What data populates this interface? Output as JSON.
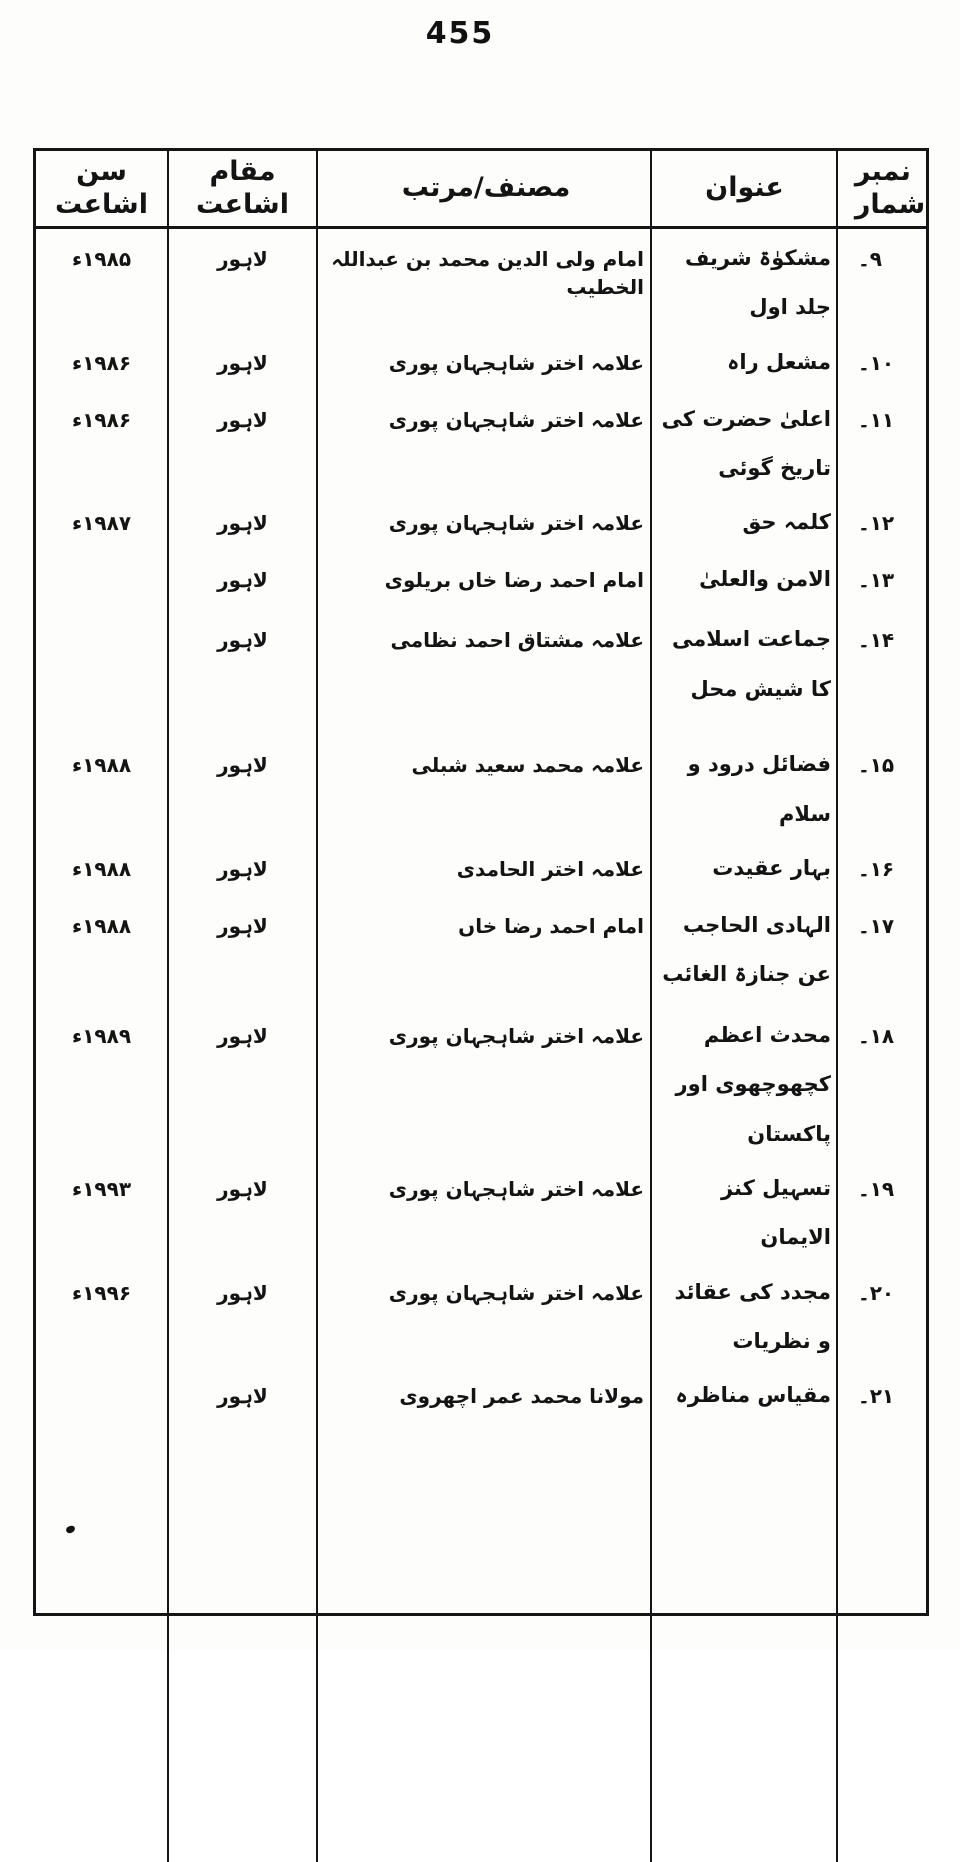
{
  "page": {
    "number": "455"
  },
  "table": {
    "headers": {
      "serial": "نمبر شمار",
      "title": "عنوان",
      "author": "مصنف/مرتب",
      "place": "مقام اشاعت",
      "year": "سن اشاعت"
    },
    "rows": [
      {
        "serial": "۹۔",
        "title": "مشکوٰۃ شریف جلد اول",
        "author": "امام ولی الدین محمد بن عبداللہ الخطیب",
        "place": "لاہور",
        "year": "۱۹۸۵ء"
      },
      {
        "serial": "۱۰۔",
        "title": "مشعل راہ",
        "author": "علامہ اختر شاہجہان پوری",
        "place": "لاہور",
        "year": "۱۹۸۶ء"
      },
      {
        "serial": "۱۱۔",
        "title": "اعلیٰ حضرت کی تاریخ گوئی",
        "author": "علامہ اختر شاہجہان پوری",
        "place": "لاہور",
        "year": "۱۹۸۶ء"
      },
      {
        "serial": "۱۲۔",
        "title": "کلمہ حق",
        "author": "علامہ اختر شاہجہان پوری",
        "place": "لاہور",
        "year": "۱۹۸۷ء"
      },
      {
        "serial": "۱۳۔",
        "title": "الامن والعلیٰ",
        "author": "امام احمد رضا خاں بریلوی",
        "place": "لاہور",
        "year": ""
      },
      {
        "serial": "۱۴۔",
        "title": "جماعت اسلامی کا شیش محل",
        "author": "علامہ مشتاق احمد نظامی",
        "place": "لاہور",
        "year": ""
      },
      {
        "serial": "۱۵۔",
        "title": "فضائل درود و سلام",
        "author": "علامہ محمد سعید شبلی",
        "place": "لاہور",
        "year": "۱۹۸۸ء"
      },
      {
        "serial": "۱۶۔",
        "title": "بہار عقیدت",
        "author": "علامہ اختر الحامدی",
        "place": "لاہور",
        "year": "۱۹۸۸ء"
      },
      {
        "serial": "۱۷۔",
        "title": "الہادی الحاجب عن جنازۃ الغائب",
        "author": "امام احمد رضا خاں",
        "place": "لاہور",
        "year": "۱۹۸۸ء"
      },
      {
        "serial": "۱۸۔",
        "title": "محدث اعظم کچھوچھوی اور پاکستان",
        "author": "علامہ اختر شاہجہان پوری",
        "place": "لاہور",
        "year": "۱۹۸۹ء"
      },
      {
        "serial": "۱۹۔",
        "title": "تسہیل کنز الایمان",
        "author": "علامہ اختر شاہجہان پوری",
        "place": "لاہور",
        "year": "۱۹۹۳ء"
      },
      {
        "serial": "۲۰۔",
        "title": "مجدد کی عقائد و نظریات",
        "author": "علامہ اختر شاہجہان پوری",
        "place": "لاہور",
        "year": "۱۹۹۶ء"
      },
      {
        "serial": "۲۱۔",
        "title": "مقیاس مناظرہ",
        "author": "مولانا محمد عمر اچھروی",
        "place": "لاہور",
        "year": ""
      }
    ]
  }
}
